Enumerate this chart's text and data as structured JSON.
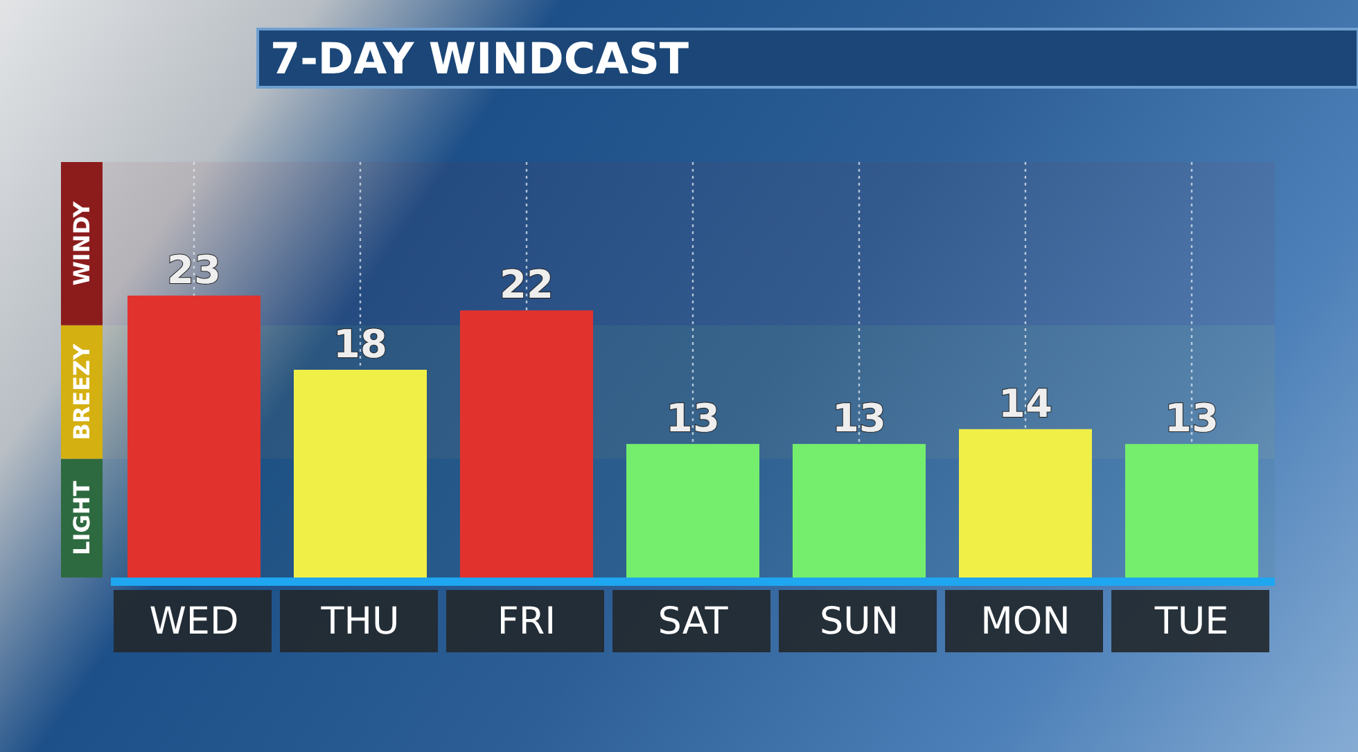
{
  "chart_data": {
    "type": "bar",
    "title": "7-DAY WINDCAST",
    "categories": [
      "WED",
      "THU",
      "FRI",
      "SAT",
      "SUN",
      "MON",
      "TUE"
    ],
    "values": [
      23,
      18,
      22,
      13,
      13,
      14,
      13
    ],
    "colors": [
      "#e2322e",
      "#f0ef48",
      "#e2322e",
      "#74ee6c",
      "#74ee6c",
      "#f0ef48",
      "#74ee6c"
    ],
    "ylim": [
      4,
      32
    ],
    "tick_labels": "x",
    "data_labels": true,
    "grid": "x",
    "bands": [
      {
        "axis": "y",
        "from": 4,
        "to": 12,
        "label": "LIGHT",
        "color": "#2e6a40"
      },
      {
        "axis": "y",
        "from": 12,
        "to": 21,
        "label": "BREEZY",
        "color": "#d4b010"
      },
      {
        "axis": "y",
        "from": 21,
        "to": 32,
        "label": "WINDY",
        "color": "#8c1c1c"
      }
    ]
  }
}
